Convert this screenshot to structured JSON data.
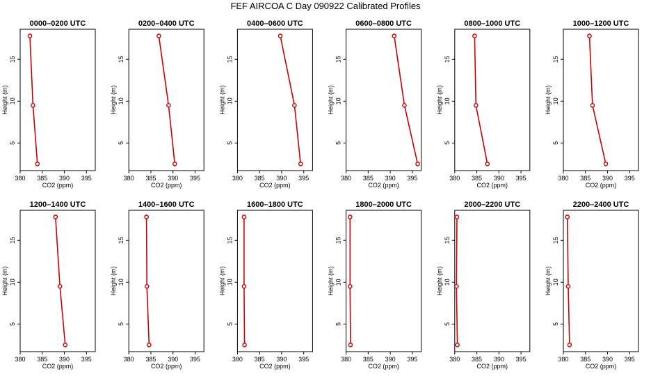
{
  "title": "FEF AIRCOA C  Day 090922  Calibrated Profiles",
  "colors": {
    "line": "#cc0000",
    "axis": "#000000"
  },
  "chart_data": {
    "type": "line",
    "xlabel": "CO2 (ppm)",
    "ylabel": "Height (m)",
    "xlim": [
      380,
      397
    ],
    "ylim": [
      1.7,
      18.6
    ],
    "xticks": [
      380,
      385,
      390,
      395
    ],
    "yticks": [
      5,
      10,
      15
    ],
    "heights": [
      17.8,
      9.5,
      2.5
    ],
    "panels": [
      {
        "title": "0000–0200 UTC",
        "values": [
          382.2,
          382.9,
          383.9
        ]
      },
      {
        "title": "0200–0400 UTC",
        "values": [
          386.8,
          389.0,
          390.4
        ]
      },
      {
        "title": "0400–0600 UTC",
        "values": [
          389.7,
          392.9,
          394.3
        ]
      },
      {
        "title": "0600–0800 UTC",
        "values": [
          390.9,
          393.2,
          396.2
        ]
      },
      {
        "title": "0800–1000 UTC",
        "values": [
          384.5,
          384.8,
          387.4
        ]
      },
      {
        "title": "1000–1200 UTC",
        "values": [
          385.9,
          386.6,
          389.6
        ]
      },
      {
        "title": "1200–1400 UTC",
        "values": [
          388.0,
          389.0,
          390.2
        ]
      },
      {
        "title": "1400–1600 UTC",
        "values": [
          384.0,
          384.1,
          384.6
        ]
      },
      {
        "title": "1600–1800 UTC",
        "values": [
          381.5,
          381.5,
          381.6
        ]
      },
      {
        "title": "1800–2000 UTC",
        "values": [
          380.9,
          380.9,
          381.0
        ]
      },
      {
        "title": "2000–2200 UTC",
        "values": [
          380.5,
          380.4,
          380.6
        ]
      },
      {
        "title": "2200–2400 UTC",
        "values": [
          380.9,
          381.1,
          381.4
        ]
      }
    ]
  }
}
